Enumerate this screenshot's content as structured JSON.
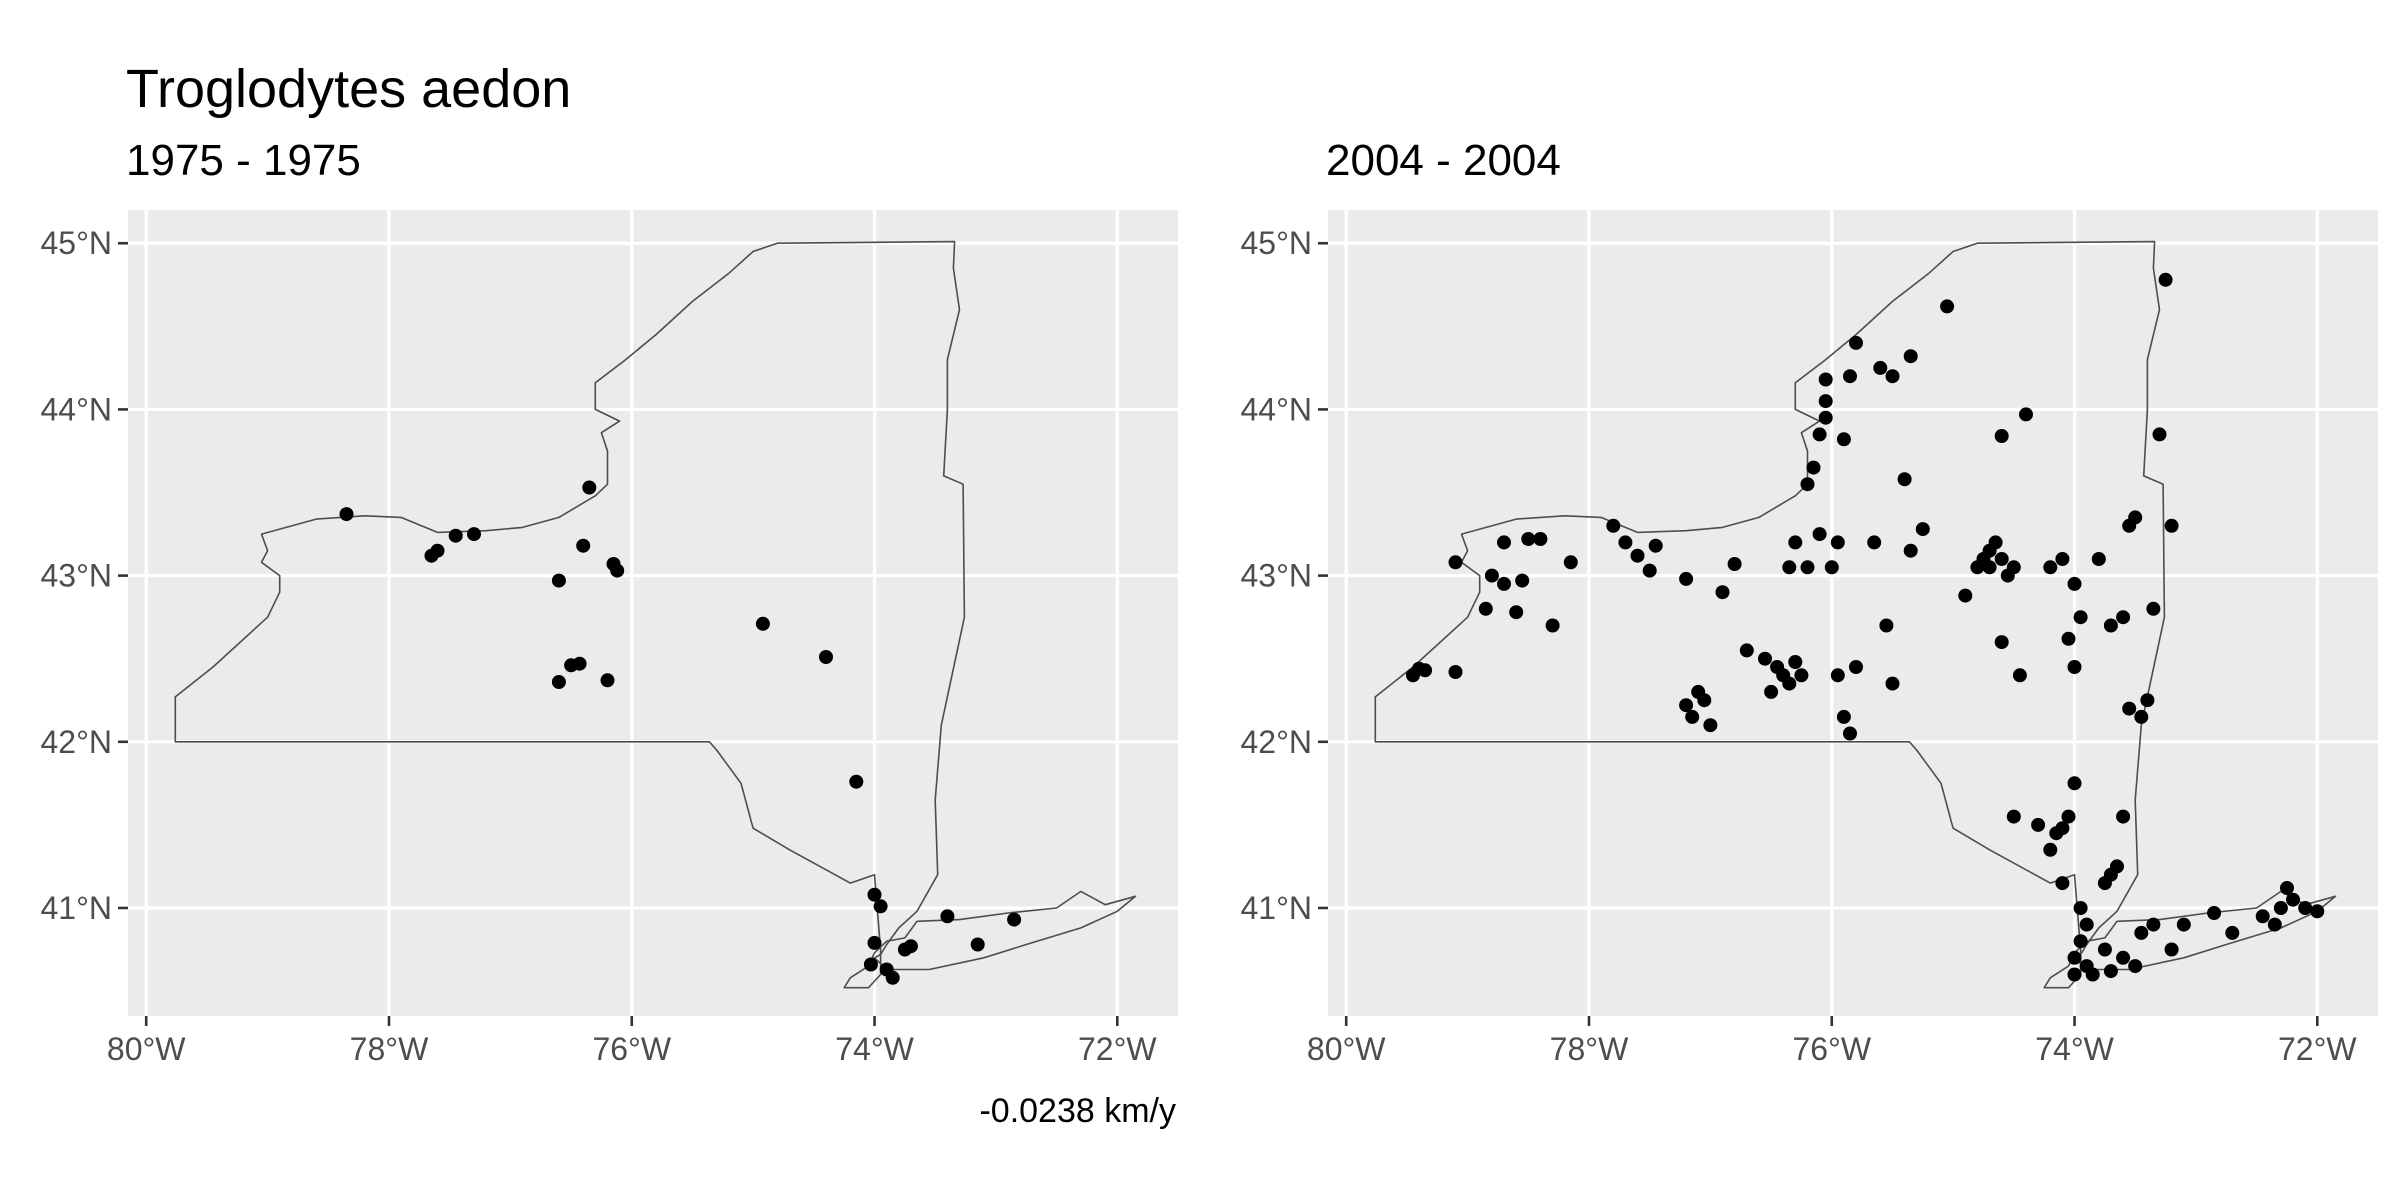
{
  "title": "Troglodytes aedon",
  "caption": "-0.0238 km/y",
  "map": {
    "extent": {
      "lon": [
        -80.15,
        -71.5
      ],
      "lat": [
        40.35,
        45.2
      ]
    },
    "x_ticks": [
      {
        "value": -80,
        "label": "80°W"
      },
      {
        "value": -78,
        "label": "78°W"
      },
      {
        "value": -76,
        "label": "76°W"
      },
      {
        "value": -74,
        "label": "74°W"
      },
      {
        "value": -72,
        "label": "72°W"
      }
    ],
    "y_ticks": [
      {
        "value": 45,
        "label": "45°N"
      },
      {
        "value": 44,
        "label": "44°N"
      },
      {
        "value": 43,
        "label": "43°N"
      },
      {
        "value": 42,
        "label": "42°N"
      },
      {
        "value": 41,
        "label": "41°N"
      }
    ],
    "outline": [
      [
        -79.76,
        42.0
      ],
      [
        -79.76,
        42.27
      ],
      [
        -79.45,
        42.45
      ],
      [
        -79.0,
        42.75
      ],
      [
        -78.9,
        42.9
      ],
      [
        -78.9,
        43.0
      ],
      [
        -79.05,
        43.08
      ],
      [
        -79.0,
        43.15
      ],
      [
        -79.05,
        43.25
      ],
      [
        -78.6,
        43.34
      ],
      [
        -78.2,
        43.36
      ],
      [
        -77.9,
        43.35
      ],
      [
        -77.6,
        43.26
      ],
      [
        -77.2,
        43.27
      ],
      [
        -76.9,
        43.29
      ],
      [
        -76.6,
        43.35
      ],
      [
        -76.3,
        43.48
      ],
      [
        -76.2,
        43.55
      ],
      [
        -76.2,
        43.75
      ],
      [
        -76.25,
        43.86
      ],
      [
        -76.1,
        43.93
      ],
      [
        -76.3,
        44.0
      ],
      [
        -76.3,
        44.16
      ],
      [
        -76.05,
        44.3
      ],
      [
        -75.8,
        44.45
      ],
      [
        -75.5,
        44.65
      ],
      [
        -75.2,
        44.82
      ],
      [
        -75.0,
        44.95
      ],
      [
        -74.8,
        45.0
      ],
      [
        -73.34,
        45.01
      ],
      [
        -73.35,
        44.85
      ],
      [
        -73.3,
        44.6
      ],
      [
        -73.4,
        44.3
      ],
      [
        -73.4,
        44.0
      ],
      [
        -73.43,
        43.6
      ],
      [
        -73.27,
        43.55
      ],
      [
        -73.26,
        42.75
      ],
      [
        -73.45,
        42.1
      ],
      [
        -73.5,
        41.65
      ],
      [
        -73.48,
        41.2
      ],
      [
        -73.65,
        40.98
      ],
      [
        -73.8,
        40.88
      ],
      [
        -73.9,
        40.78
      ],
      [
        -73.95,
        40.72
      ],
      [
        -74.0,
        40.7
      ],
      [
        -73.9,
        40.63
      ],
      [
        -73.55,
        40.63
      ],
      [
        -73.1,
        40.7
      ],
      [
        -72.75,
        40.78
      ],
      [
        -72.3,
        40.88
      ],
      [
        -72.0,
        40.98
      ],
      [
        -71.85,
        41.07
      ],
      [
        -72.1,
        41.02
      ],
      [
        -72.3,
        41.1
      ],
      [
        -72.5,
        41.0
      ],
      [
        -72.9,
        40.97
      ],
      [
        -73.3,
        40.93
      ],
      [
        -73.65,
        40.92
      ],
      [
        -73.75,
        40.82
      ],
      [
        -73.9,
        40.8
      ],
      [
        -74.0,
        40.73
      ],
      [
        -74.05,
        40.65
      ],
      [
        -74.2,
        40.58
      ],
      [
        -74.25,
        40.52
      ],
      [
        -74.05,
        40.52
      ],
      [
        -73.95,
        40.6
      ],
      [
        -73.95,
        40.75
      ],
      [
        -74.0,
        41.2
      ],
      [
        -74.2,
        41.15
      ],
      [
        -74.7,
        41.35
      ],
      [
        -75.0,
        41.48
      ],
      [
        -75.1,
        41.75
      ],
      [
        -75.3,
        41.95
      ],
      [
        -75.36,
        42.0
      ],
      [
        -79.76,
        42.0
      ]
    ]
  },
  "panels": [
    {
      "subtitle": "1975 - 1975",
      "points": [
        [
          -78.35,
          43.37
        ],
        [
          -77.65,
          43.12
        ],
        [
          -77.6,
          43.15
        ],
        [
          -77.45,
          43.24
        ],
        [
          -77.3,
          43.25
        ],
        [
          -76.35,
          43.53
        ],
        [
          -76.4,
          43.18
        ],
        [
          -76.6,
          42.97
        ],
        [
          -76.15,
          43.07
        ],
        [
          -76.12,
          43.03
        ],
        [
          -76.6,
          42.36
        ],
        [
          -76.5,
          42.46
        ],
        [
          -76.43,
          42.47
        ],
        [
          -76.2,
          42.37
        ],
        [
          -74.92,
          42.71
        ],
        [
          -74.4,
          42.51
        ],
        [
          -74.15,
          41.76
        ],
        [
          -74.0,
          41.08
        ],
        [
          -73.95,
          41.01
        ],
        [
          -74.0,
          40.79
        ],
        [
          -73.9,
          40.63
        ],
        [
          -73.85,
          40.58
        ],
        [
          -74.03,
          40.66
        ],
        [
          -73.75,
          40.75
        ],
        [
          -73.7,
          40.77
        ],
        [
          -73.4,
          40.95
        ],
        [
          -73.15,
          40.78
        ],
        [
          -72.85,
          40.93
        ]
      ]
    },
    {
      "subtitle": "2004 - 2004",
      "points": [
        [
          -79.45,
          42.4
        ],
        [
          -79.4,
          42.44
        ],
        [
          -79.35,
          42.43
        ],
        [
          -79.1,
          42.42
        ],
        [
          -79.1,
          43.08
        ],
        [
          -78.85,
          42.8
        ],
        [
          -78.8,
          43.0
        ],
        [
          -78.7,
          42.95
        ],
        [
          -78.7,
          43.2
        ],
        [
          -78.6,
          42.78
        ],
        [
          -78.55,
          42.97
        ],
        [
          -78.5,
          43.22
        ],
        [
          -78.4,
          43.22
        ],
        [
          -78.3,
          42.7
        ],
        [
          -78.15,
          43.08
        ],
        [
          -77.8,
          43.3
        ],
        [
          -77.7,
          43.2
        ],
        [
          -77.6,
          43.12
        ],
        [
          -77.45,
          43.18
        ],
        [
          -77.5,
          43.03
        ],
        [
          -77.2,
          42.98
        ],
        [
          -77.1,
          42.3
        ],
        [
          -77.05,
          42.25
        ],
        [
          -77.2,
          42.22
        ],
        [
          -77.15,
          42.15
        ],
        [
          -77.0,
          42.1
        ],
        [
          -76.9,
          42.9
        ],
        [
          -76.8,
          43.07
        ],
        [
          -76.7,
          42.55
        ],
        [
          -76.55,
          42.5
        ],
        [
          -76.45,
          42.45
        ],
        [
          -76.4,
          42.4
        ],
        [
          -76.35,
          42.35
        ],
        [
          -76.3,
          42.48
        ],
        [
          -76.25,
          42.4
        ],
        [
          -76.5,
          42.3
        ],
        [
          -76.3,
          43.2
        ],
        [
          -76.35,
          43.05
        ],
        [
          -76.2,
          43.05
        ],
        [
          -76.1,
          43.25
        ],
        [
          -75.95,
          43.2
        ],
        [
          -76.0,
          43.05
        ],
        [
          -76.2,
          43.55
        ],
        [
          -76.15,
          43.65
        ],
        [
          -76.1,
          43.85
        ],
        [
          -76.05,
          43.95
        ],
        [
          -76.05,
          44.05
        ],
        [
          -76.05,
          44.18
        ],
        [
          -75.9,
          43.82
        ],
        [
          -75.95,
          42.4
        ],
        [
          -75.9,
          42.15
        ],
        [
          -75.85,
          42.05
        ],
        [
          -75.8,
          42.45
        ],
        [
          -75.5,
          42.35
        ],
        [
          -75.55,
          42.7
        ],
        [
          -75.4,
          43.58
        ],
        [
          -75.35,
          43.15
        ],
        [
          -75.25,
          43.28
        ],
        [
          -75.65,
          43.2
        ],
        [
          -75.6,
          44.25
        ],
        [
          -75.5,
          44.2
        ],
        [
          -75.35,
          44.32
        ],
        [
          -75.05,
          44.62
        ],
        [
          -75.85,
          44.2
        ],
        [
          -75.8,
          44.4
        ],
        [
          -74.75,
          43.1
        ],
        [
          -74.7,
          43.05
        ],
        [
          -74.65,
          43.2
        ],
        [
          -74.6,
          43.1
        ],
        [
          -74.55,
          43.0
        ],
        [
          -74.5,
          43.05
        ],
        [
          -74.7,
          43.15
        ],
        [
          -74.8,
          43.05
        ],
        [
          -74.9,
          42.88
        ],
        [
          -74.6,
          42.6
        ],
        [
          -74.45,
          42.4
        ],
        [
          -74.4,
          43.97
        ],
        [
          -74.6,
          43.84
        ],
        [
          -74.2,
          43.05
        ],
        [
          -74.1,
          43.1
        ],
        [
          -74.0,
          42.95
        ],
        [
          -74.05,
          42.62
        ],
        [
          -74.0,
          42.45
        ],
        [
          -73.95,
          42.75
        ],
        [
          -73.8,
          43.1
        ],
        [
          -73.7,
          42.7
        ],
        [
          -73.6,
          42.75
        ],
        [
          -73.55,
          43.3
        ],
        [
          -73.5,
          43.35
        ],
        [
          -73.35,
          42.8
        ],
        [
          -73.4,
          42.25
        ],
        [
          -73.45,
          42.15
        ],
        [
          -73.55,
          42.2
        ],
        [
          -73.6,
          41.55
        ],
        [
          -73.65,
          41.25
        ],
        [
          -73.7,
          41.2
        ],
        [
          -73.75,
          41.15
        ],
        [
          -73.25,
          44.78
        ],
        [
          -73.3,
          43.85
        ],
        [
          -73.2,
          43.3
        ],
        [
          -74.0,
          41.75
        ],
        [
          -74.05,
          41.55
        ],
        [
          -74.1,
          41.48
        ],
        [
          -74.15,
          41.45
        ],
        [
          -74.2,
          41.35
        ],
        [
          -74.3,
          41.5
        ],
        [
          -74.5,
          41.55
        ],
        [
          -74.1,
          41.15
        ],
        [
          -73.95,
          41.0
        ],
        [
          -73.9,
          40.9
        ],
        [
          -73.95,
          40.8
        ],
        [
          -74.0,
          40.7
        ],
        [
          -73.9,
          40.65
        ],
        [
          -73.85,
          40.6
        ],
        [
          -73.75,
          40.75
        ],
        [
          -73.6,
          40.7
        ],
        [
          -73.45,
          40.85
        ],
        [
          -73.35,
          40.9
        ],
        [
          -73.2,
          40.75
        ],
        [
          -73.1,
          40.9
        ],
        [
          -72.85,
          40.97
        ],
        [
          -72.7,
          40.85
        ],
        [
          -72.45,
          40.95
        ],
        [
          -72.3,
          41.0
        ],
        [
          -72.2,
          41.05
        ],
        [
          -72.25,
          41.12
        ],
        [
          -72.1,
          41.0
        ],
        [
          -72.0,
          40.98
        ],
        [
          -72.35,
          40.9
        ],
        [
          -73.5,
          40.65
        ],
        [
          -73.7,
          40.62
        ],
        [
          -74.0,
          40.6
        ]
      ]
    }
  ]
}
